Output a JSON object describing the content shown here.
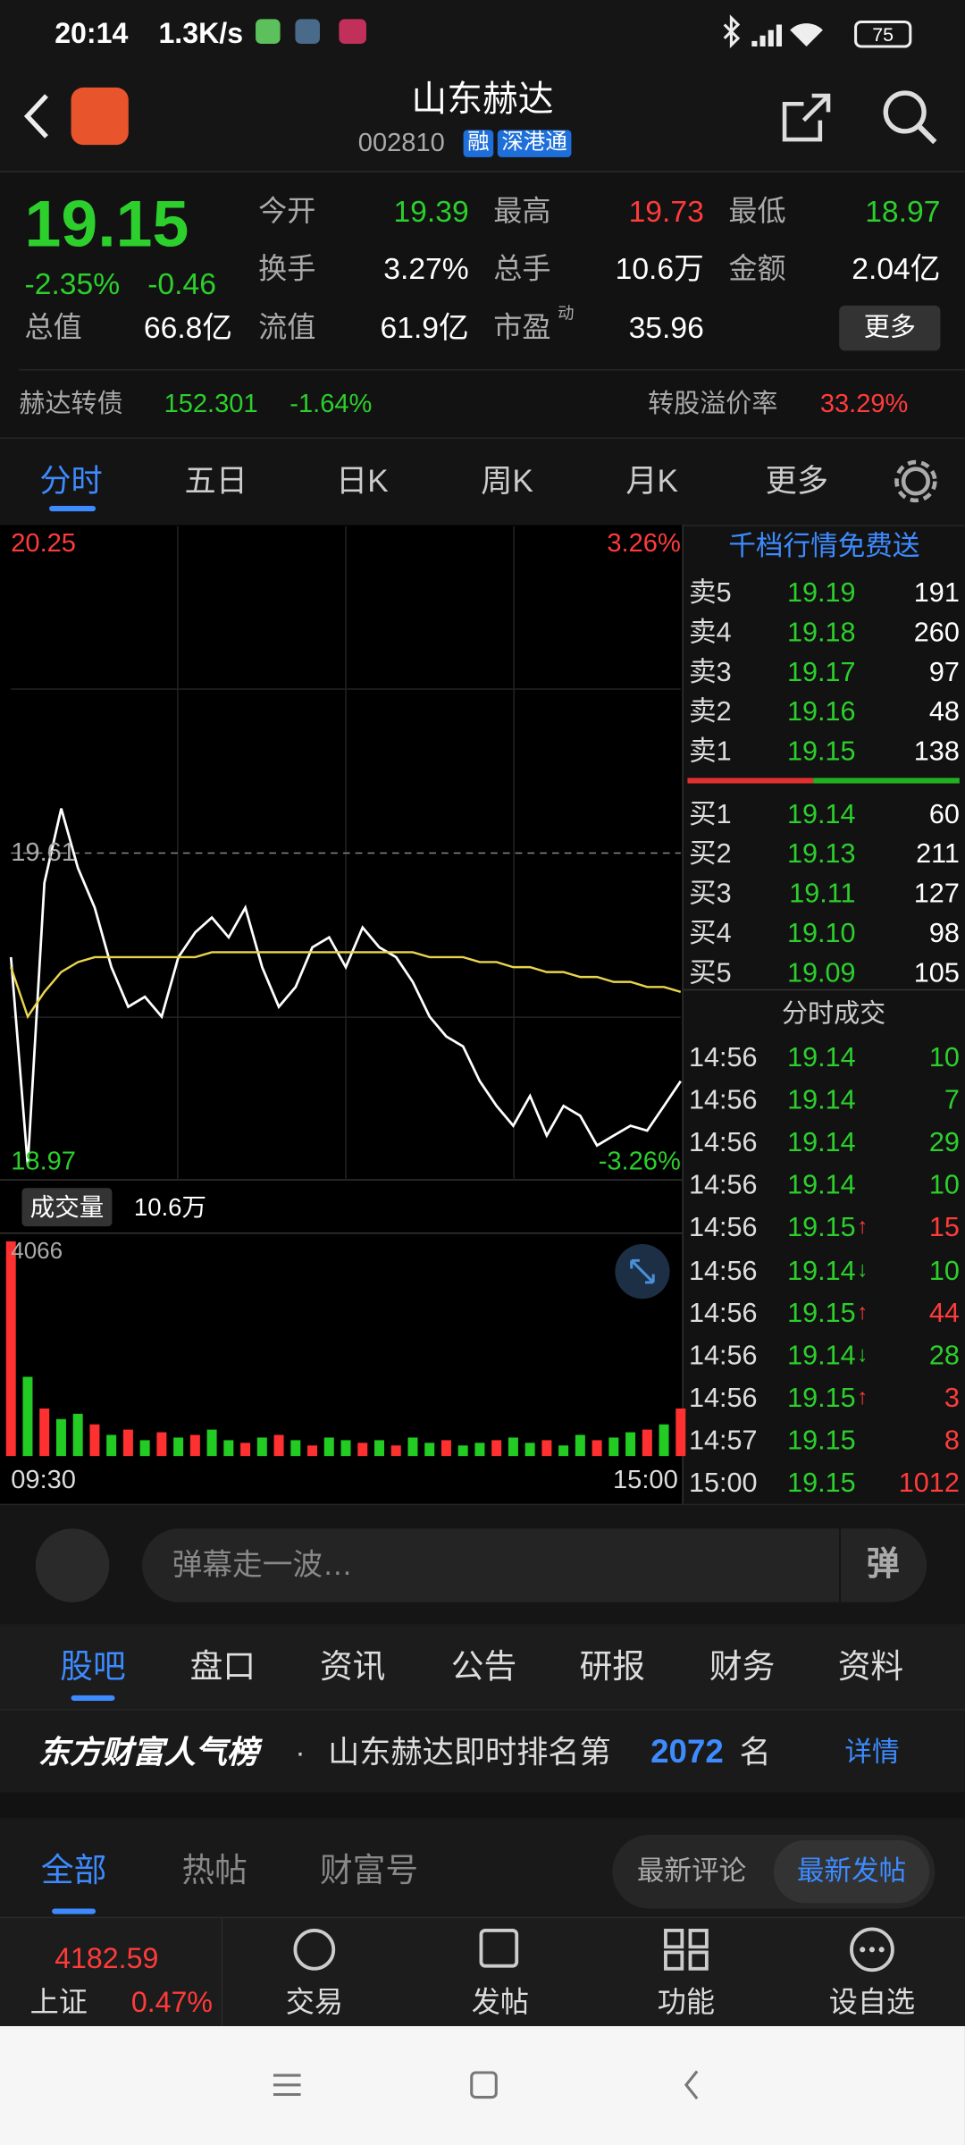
{
  "status_bar": {
    "time": "20:14",
    "speed": "1.3K/s",
    "battery": "75"
  },
  "header": {
    "title": "山东赫达",
    "code": "002810",
    "tags": [
      "融",
      "深港通"
    ]
  },
  "quote": {
    "price": "19.15",
    "change_pct": "-2.35%",
    "change": "-0.46",
    "stats": [
      {
        "label": "今开",
        "value": "19.39",
        "tone": "down"
      },
      {
        "label": "最高",
        "value": "19.73",
        "tone": "up"
      },
      {
        "label": "最低",
        "value": "18.97",
        "tone": "down"
      },
      {
        "label": "换手",
        "value": "3.27%"
      },
      {
        "label": "总手",
        "value": "10.6万"
      },
      {
        "label": "金额",
        "value": "2.04亿"
      },
      {
        "label": "总值",
        "value": "66.8亿"
      },
      {
        "label": "流值",
        "value": "61.9亿"
      },
      {
        "label": "市盈",
        "value": "35.96",
        "superscript": "动"
      }
    ],
    "more": "更多"
  },
  "bond": {
    "name": "赫达转债",
    "price": "152.301",
    "change": "-1.64%",
    "premium_label": "转股溢价率",
    "premium": "33.29%"
  },
  "tabs": [
    "分时",
    "五日",
    "日K",
    "周K",
    "月K",
    "更多"
  ],
  "chart_data": {
    "type": "line",
    "x": [
      "09:30",
      null,
      null,
      null,
      null,
      null,
      null,
      null,
      null,
      null,
      null,
      null,
      null,
      null,
      null,
      null,
      null,
      null,
      null,
      null,
      null,
      null,
      null,
      null,
      null,
      null,
      null,
      null,
      null,
      null,
      null,
      null,
      null,
      null,
      null,
      null,
      null,
      null,
      null,
      null,
      "15:00"
    ],
    "series": [
      {
        "name": "价格",
        "color": "#ffffff",
        "values": [
          19.4,
          18.98,
          19.55,
          19.7,
          19.58,
          19.5,
          19.38,
          19.3,
          19.32,
          19.28,
          19.4,
          19.45,
          19.48,
          19.44,
          19.5,
          19.38,
          19.3,
          19.34,
          19.42,
          19.44,
          19.38,
          19.46,
          19.42,
          19.4,
          19.35,
          19.28,
          19.24,
          19.22,
          19.15,
          19.1,
          19.06,
          19.12,
          19.04,
          19.1,
          19.08,
          19.02,
          19.04,
          19.06,
          19.05,
          19.1,
          19.15
        ]
      },
      {
        "name": "均价",
        "color": "#e8d44d",
        "values": [
          19.38,
          19.28,
          19.33,
          19.37,
          19.39,
          19.4,
          19.4,
          19.4,
          19.4,
          19.4,
          19.4,
          19.4,
          19.41,
          19.41,
          19.41,
          19.41,
          19.41,
          19.41,
          19.41,
          19.41,
          19.41,
          19.41,
          19.41,
          19.41,
          19.41,
          19.4,
          19.4,
          19.4,
          19.39,
          19.39,
          19.38,
          19.38,
          19.37,
          19.37,
          19.36,
          19.36,
          19.35,
          19.35,
          19.34,
          19.34,
          19.33
        ]
      }
    ],
    "ylim": [
      18.97,
      20.25
    ],
    "yticks": [
      20.25,
      19.61,
      18.97
    ],
    "y2lim": [
      -3.26,
      3.26
    ],
    "y2ticks": [
      {
        "value": 3.26,
        "label": "3.26%"
      },
      {
        "value": -3.26,
        "label": "-3.26%"
      }
    ],
    "volume": {
      "label": "成交量",
      "total": "10.6万",
      "ylim": [
        0,
        4066
      ],
      "yticks": [
        4066
      ],
      "values": [
        4066,
        1500,
        900,
        700,
        800,
        600,
        400,
        500,
        300,
        450,
        350,
        400,
        500,
        300,
        250,
        350,
        400,
        300,
        200,
        350,
        300,
        250,
        300,
        200,
        350,
        250,
        300,
        200,
        250,
        300,
        350,
        250,
        300,
        200,
        400,
        300,
        350,
        450,
        500,
        600,
        900
      ],
      "colors": [
        "#ff3030",
        "#22cc22",
        "#ff3030",
        "#22cc22",
        "#22cc22",
        "#ff3030",
        "#22cc22",
        "#ff3030",
        "#22cc22",
        "#ff3030",
        "#22cc22",
        "#ff3030",
        "#22cc22",
        "#22cc22",
        "#ff3030",
        "#22cc22",
        "#ff3030",
        "#22cc22",
        "#ff3030",
        "#22cc22",
        "#22cc22",
        "#ff3030",
        "#22cc22",
        "#ff3030",
        "#22cc22",
        "#22cc22",
        "#ff3030",
        "#22cc22",
        "#22cc22",
        "#ff3030",
        "#22cc22",
        "#22cc22",
        "#ff3030",
        "#22cc22",
        "#22cc22",
        "#ff3030",
        "#22cc22",
        "#22cc22",
        "#ff3030",
        "#22cc22",
        "#ff3030"
      ]
    }
  },
  "order_book": {
    "banner": "千档行情免费送",
    "asks": [
      {
        "label": "卖5",
        "price": "19.19",
        "volume": "191"
      },
      {
        "label": "卖4",
        "price": "19.18",
        "volume": "260"
      },
      {
        "label": "卖3",
        "price": "19.17",
        "volume": "97"
      },
      {
        "label": "卖2",
        "price": "19.16",
        "volume": "48"
      },
      {
        "label": "卖1",
        "price": "19.15",
        "volume": "138"
      }
    ],
    "bids": [
      {
        "label": "买1",
        "price": "19.14",
        "volume": "60"
      },
      {
        "label": "买2",
        "price": "19.13",
        "volume": "211"
      },
      {
        "label": "买3",
        "price": "19.11",
        "volume": "127"
      },
      {
        "label": "买4",
        "price": "19.10",
        "volume": "98"
      },
      {
        "label": "买5",
        "price": "19.09",
        "volume": "105"
      }
    ]
  },
  "trades": {
    "title": "分时成交",
    "rows": [
      {
        "time": "14:56",
        "price": "19.14",
        "volume": "10",
        "side": "sell"
      },
      {
        "time": "14:56",
        "price": "19.14",
        "volume": "7",
        "side": "sell"
      },
      {
        "time": "14:56",
        "price": "19.14",
        "volume": "29",
        "side": "sell"
      },
      {
        "time": "14:56",
        "price": "19.14",
        "volume": "10",
        "side": "sell"
      },
      {
        "time": "14:56",
        "price": "19.15",
        "arrow": "↑",
        "volume": "15",
        "side": "buy"
      },
      {
        "time": "14:56",
        "price": "19.14",
        "arrow": "↓",
        "volume": "10",
        "side": "sell"
      },
      {
        "time": "14:56",
        "price": "19.15",
        "arrow": "↑",
        "volume": "44",
        "side": "buy"
      },
      {
        "time": "14:56",
        "price": "19.14",
        "arrow": "↓",
        "volume": "28",
        "side": "sell"
      },
      {
        "time": "14:56",
        "price": "19.15",
        "arrow": "↑",
        "volume": "3",
        "side": "buy"
      },
      {
        "time": "14:57",
        "price": "19.15",
        "volume": "8",
        "side": "buy"
      },
      {
        "time": "15:00",
        "price": "19.15",
        "volume": "1012",
        "side": "buy"
      }
    ]
  },
  "danmaku": {
    "placeholder": "弹幕走一波…",
    "button": "弹"
  },
  "section_tabs": [
    "股吧",
    "盘口",
    "资讯",
    "公告",
    "研报",
    "财务",
    "资料"
  ],
  "ranking": {
    "brand": "东方财富人气榜",
    "dot": "·",
    "text": "山东赫达即时排名第",
    "rank": "2072",
    "unit": "名",
    "link": "详情"
  },
  "filter_tabs": [
    "全部",
    "热帖",
    "财富号"
  ],
  "sort_toggle": [
    "最新评论",
    "最新发帖"
  ],
  "bottom_nav": {
    "index_value": "4182.59",
    "index_name": "上证",
    "index_change": "0.47%",
    "items": [
      "交易",
      "发帖",
      "功能",
      "设自选"
    ]
  }
}
